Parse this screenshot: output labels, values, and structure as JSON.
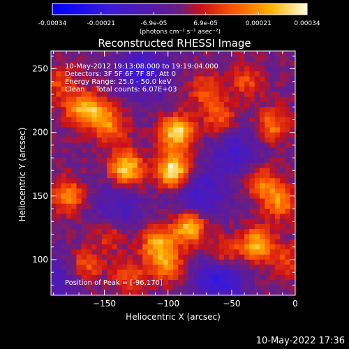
{
  "chart_data": {
    "type": "heatmap",
    "title": "Reconstructed RHESSI Image",
    "xlabel": "Heliocentric X (arcsec)",
    "ylabel": "Heliocentric Y (arcsec)",
    "xlim": [
      -192,
      0
    ],
    "ylim": [
      72,
      264
    ],
    "x_ticks": [
      -150,
      -100,
      -50,
      0
    ],
    "y_ticks": [
      100,
      150,
      200,
      250
    ],
    "colormap": "RHESSI diverging: blue (negative) - purple (zero) - red/orange/yellow/white (positive)",
    "colorbar": {
      "ticks": [
        "-0.00034",
        "-0.00021",
        "-6.9e-05",
        "6.9e-05",
        "0.00021",
        "0.00034"
      ],
      "min": -0.00034,
      "max": 0.00034,
      "units_label": "(photons cm⁻² s⁻¹ asec⁻²)"
    },
    "annotations": [
      "10-May-2012 19:13:08.000 to 19:19:04.000",
      "Detectors: 3F 5F 6F 7F 8F, Att 0",
      "Energy Range: 25.0 - 50.0 keV",
      "Clean     Total counts: 6.07E+03"
    ],
    "peak_label": "Position of Peak = [-96,170]",
    "peak_position": [
      -96,
      170
    ],
    "sources": [
      {
        "x": -96,
        "y": 170,
        "peak": 1.0
      },
      {
        "x": -93,
        "y": 200,
        "peak": 0.92
      },
      {
        "x": -133,
        "y": 172,
        "peak": 0.88
      },
      {
        "x": -157,
        "y": 215,
        "peak": 0.55
      },
      {
        "x": -170,
        "y": 220,
        "peak": 0.5
      },
      {
        "x": -178,
        "y": 150,
        "peak": 0.55
      },
      {
        "x": -145,
        "y": 205,
        "peak": 0.45
      },
      {
        "x": -83,
        "y": 125,
        "peak": 0.85
      },
      {
        "x": -108,
        "y": 112,
        "peak": 0.7
      },
      {
        "x": -100,
        "y": 95,
        "peak": 0.55
      },
      {
        "x": -30,
        "y": 112,
        "peak": 0.7
      },
      {
        "x": -55,
        "y": 105,
        "peak": 0.5
      },
      {
        "x": -25,
        "y": 160,
        "peak": 0.5
      },
      {
        "x": -12,
        "y": 145,
        "peak": 0.55
      },
      {
        "x": -8,
        "y": 100,
        "peak": 0.35
      },
      {
        "x": -60,
        "y": 210,
        "peak": 0.45
      },
      {
        "x": -18,
        "y": 205,
        "peak": 0.5
      },
      {
        "x": -70,
        "y": 232,
        "peak": 0.4
      },
      {
        "x": -145,
        "y": 120,
        "peak": 0.35
      },
      {
        "x": -130,
        "y": 88,
        "peak": 0.35
      },
      {
        "x": -165,
        "y": 95,
        "peak": 0.45
      },
      {
        "x": -38,
        "y": 240,
        "peak": 0.35
      },
      {
        "x": -185,
        "y": 240,
        "peak": 0.35
      }
    ],
    "negative_regions": [
      {
        "x": -120,
        "y": 248,
        "depth": 0.55
      },
      {
        "x": -75,
        "y": 150,
        "depth": 0.45
      },
      {
        "x": -60,
        "y": 85,
        "depth": 0.6
      },
      {
        "x": -48,
        "y": 185,
        "depth": 0.4
      },
      {
        "x": -140,
        "y": 140,
        "depth": 0.35
      },
      {
        "x": -185,
        "y": 85,
        "depth": 0.3
      }
    ]
  },
  "footer": {
    "date": "10-May-2022 17:36"
  }
}
